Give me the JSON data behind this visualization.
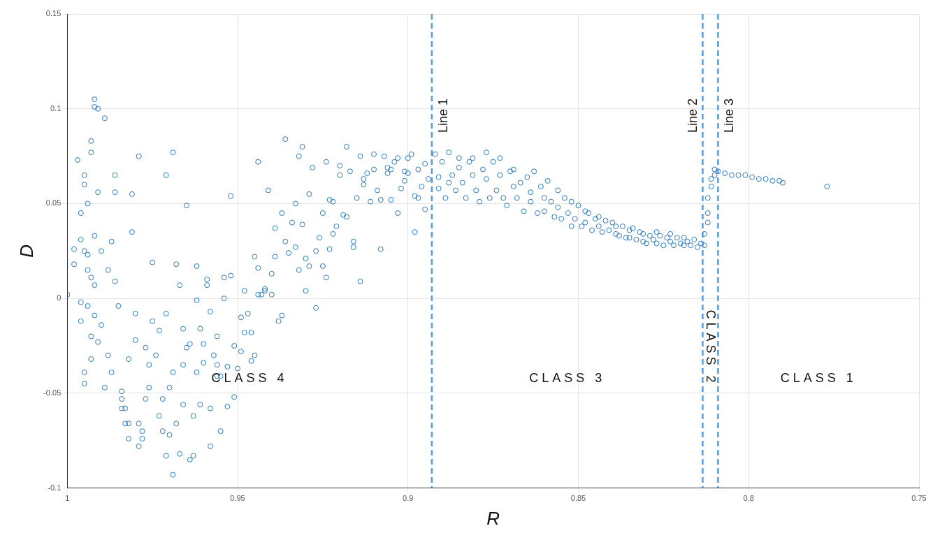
{
  "chart_data": {
    "type": "scatter",
    "xlabel": "R",
    "ylabel": "D",
    "xlim": [
      1,
      0.75
    ],
    "ylim": [
      -0.1,
      0.15
    ],
    "xticks": [
      1,
      0.95,
      0.9,
      0.85,
      0.8,
      0.75
    ],
    "yticks": [
      -0.1,
      -0.05,
      0,
      0.05,
      0.1,
      0.15
    ],
    "grid": true,
    "legend": false,
    "marker": "circle",
    "series": [
      {
        "color": "#2a7abf",
        "x": [
          1.0,
          0.998,
          0.998,
          0.997,
          0.996,
          0.996,
          0.996,
          0.996,
          0.995,
          0.995,
          0.995,
          0.995,
          0.995,
          0.994,
          0.994,
          0.994,
          0.994,
          0.993,
          0.993,
          0.993,
          0.993,
          0.993,
          0.992,
          0.992,
          0.992,
          0.992,
          0.992,
          0.991,
          0.991,
          0.991,
          0.99,
          0.99,
          0.989,
          0.989,
          0.988,
          0.988,
          0.987,
          0.987,
          0.986,
          0.986,
          0.986,
          0.985,
          0.984,
          0.984,
          0.984,
          0.983,
          0.983,
          0.982,
          0.982,
          0.982,
          0.981,
          0.981,
          0.98,
          0.98,
          0.979,
          0.979,
          0.978,
          0.978,
          0.977,
          0.979,
          0.977,
          0.976,
          0.976,
          0.975,
          0.975,
          0.974,
          0.973,
          0.973,
          0.972,
          0.972,
          0.971,
          0.971,
          0.971,
          0.97,
          0.97,
          0.969,
          0.969,
          0.969,
          0.968,
          0.968,
          0.967,
          0.967,
          0.966,
          0.966,
          0.966,
          0.965,
          0.965,
          0.964,
          0.964,
          0.963,
          0.963,
          0.962,
          0.962,
          0.962,
          0.961,
          0.961,
          0.96,
          0.96,
          0.959,
          0.959,
          0.958,
          0.958,
          0.958,
          0.957,
          0.956,
          0.956,
          0.956,
          0.955,
          0.955,
          0.954,
          0.954,
          0.953,
          0.953,
          0.952,
          0.952,
          0.951,
          0.951,
          0.95,
          0.949,
          0.949,
          0.948,
          0.948,
          0.947,
          0.946,
          0.946,
          0.945,
          0.945,
          0.944,
          0.944,
          0.944,
          0.943,
          0.942,
          0.942,
          0.941,
          0.94,
          0.94,
          0.939,
          0.939,
          0.938,
          0.937,
          0.937,
          0.936,
          0.936,
          0.935,
          0.934,
          0.933,
          0.933,
          0.932,
          0.932,
          0.931,
          0.931,
          0.93,
          0.93,
          0.929,
          0.929,
          0.928,
          0.927,
          0.927,
          0.926,
          0.925,
          0.925,
          0.924,
          0.924,
          0.923,
          0.923,
          0.922,
          0.922,
          0.921,
          0.92,
          0.92,
          0.919,
          0.918,
          0.918,
          0.917,
          0.916,
          0.916,
          0.915,
          0.914,
          0.914,
          0.913,
          0.913,
          0.912,
          0.911,
          0.91,
          0.91,
          0.909,
          0.908,
          0.908,
          0.907,
          0.906,
          0.906,
          0.905,
          0.905,
          0.904,
          0.903,
          0.903,
          0.902,
          0.901,
          0.901,
          0.9,
          0.9,
          0.899,
          0.898,
          0.898,
          0.897,
          0.897,
          0.896,
          0.895,
          0.895,
          0.894,
          0.892,
          0.891,
          0.891,
          0.89,
          0.889,
          0.888,
          0.888,
          0.887,
          0.886,
          0.885,
          0.885,
          0.884,
          0.883,
          0.882,
          0.881,
          0.881,
          0.88,
          0.879,
          0.878,
          0.877,
          0.877,
          0.876,
          0.875,
          0.874,
          0.873,
          0.873,
          0.872,
          0.871,
          0.87,
          0.869,
          0.869,
          0.868,
          0.867,
          0.866,
          0.865,
          0.864,
          0.864,
          0.863,
          0.862,
          0.861,
          0.86,
          0.86,
          0.859,
          0.858,
          0.857,
          0.856,
          0.856,
          0.855,
          0.854,
          0.853,
          0.852,
          0.852,
          0.851,
          0.85,
          0.849,
          0.848,
          0.848,
          0.847,
          0.846,
          0.845,
          0.844,
          0.844,
          0.843,
          0.842,
          0.841,
          0.84,
          0.839,
          0.839,
          0.838,
          0.837,
          0.836,
          0.835,
          0.835,
          0.834,
          0.833,
          0.832,
          0.831,
          0.831,
          0.83,
          0.829,
          0.828,
          0.827,
          0.827,
          0.826,
          0.825,
          0.824,
          0.823,
          0.823,
          0.822,
          0.821,
          0.82,
          0.819,
          0.819,
          0.818,
          0.817,
          0.816,
          0.815,
          0.814,
          0.813,
          0.813,
          0.812,
          0.812,
          0.812,
          0.811,
          0.811,
          0.81,
          0.81,
          0.809,
          0.807,
          0.805,
          0.803,
          0.801,
          0.799,
          0.797,
          0.795,
          0.793,
          0.791,
          0.79,
          0.777
        ],
        "values": [
          0.002,
          0.026,
          0.018,
          0.073,
          0.045,
          0.031,
          -0.002,
          -0.012,
          -0.039,
          -0.045,
          0.065,
          0.06,
          0.025,
          -0.004,
          0.05,
          0.015,
          0.023,
          -0.02,
          -0.032,
          0.011,
          0.083,
          0.077,
          0.105,
          0.101,
          0.007,
          0.033,
          -0.009,
          0.1,
          -0.023,
          0.056,
          -0.014,
          0.025,
          0.095,
          -0.047,
          0.015,
          -0.03,
          -0.039,
          0.03,
          0.065,
          0.009,
          0.056,
          -0.004,
          -0.053,
          -0.058,
          -0.049,
          -0.066,
          -0.058,
          -0.074,
          -0.066,
          -0.032,
          0.035,
          0.055,
          -0.008,
          -0.022,
          -0.078,
          -0.066,
          -0.07,
          -0.074,
          -0.053,
          0.075,
          -0.026,
          -0.035,
          -0.047,
          -0.012,
          0.019,
          -0.03,
          -0.062,
          -0.017,
          -0.07,
          -0.053,
          -0.008,
          0.065,
          -0.083,
          -0.072,
          -0.047,
          -0.039,
          -0.093,
          0.077,
          0.018,
          -0.066,
          -0.082,
          0.007,
          -0.016,
          -0.035,
          -0.056,
          -0.026,
          0.049,
          -0.024,
          -0.085,
          -0.083,
          -0.062,
          -0.039,
          -0.001,
          0.017,
          -0.016,
          -0.056,
          -0.034,
          -0.024,
          0.01,
          0.007,
          -0.007,
          -0.078,
          -0.058,
          -0.03,
          -0.035,
          -0.041,
          -0.02,
          -0.041,
          -0.07,
          0.011,
          0.0,
          -0.057,
          -0.036,
          0.054,
          0.012,
          -0.052,
          -0.025,
          -0.037,
          -0.01,
          -0.028,
          -0.018,
          0.004,
          -0.008,
          -0.018,
          -0.033,
          -0.03,
          0.022,
          0.016,
          0.002,
          0.072,
          0.002,
          0.005,
          0.004,
          0.057,
          0.013,
          0.002,
          0.022,
          0.037,
          -0.012,
          -0.009,
          0.045,
          0.084,
          0.03,
          0.024,
          0.04,
          0.05,
          0.027,
          0.015,
          0.075,
          0.039,
          0.08,
          0.004,
          0.021,
          0.055,
          0.017,
          0.069,
          -0.005,
          0.025,
          0.032,
          0.045,
          0.017,
          0.072,
          0.011,
          0.026,
          0.052,
          0.034,
          0.051,
          0.038,
          0.065,
          0.07,
          0.044,
          0.08,
          0.043,
          0.067,
          0.027,
          0.03,
          0.053,
          0.075,
          0.009,
          0.06,
          0.063,
          0.066,
          0.051,
          0.068,
          0.076,
          0.057,
          0.026,
          0.052,
          0.075,
          0.069,
          0.066,
          0.052,
          0.068,
          0.072,
          0.045,
          0.074,
          0.058,
          0.067,
          0.062,
          0.066,
          0.074,
          0.076,
          0.054,
          0.035,
          0.053,
          0.068,
          0.059,
          0.047,
          0.071,
          0.063,
          0.076,
          0.058,
          0.064,
          0.072,
          0.053,
          0.061,
          0.077,
          0.065,
          0.057,
          0.069,
          0.074,
          0.061,
          0.053,
          0.072,
          0.065,
          0.074,
          0.057,
          0.051,
          0.068,
          0.077,
          0.063,
          0.053,
          0.072,
          0.057,
          0.065,
          0.074,
          0.053,
          0.049,
          0.067,
          0.059,
          0.068,
          0.053,
          0.061,
          0.046,
          0.064,
          0.056,
          0.051,
          0.067,
          0.045,
          0.059,
          0.053,
          0.046,
          0.062,
          0.051,
          0.043,
          0.057,
          0.048,
          0.042,
          0.053,
          0.045,
          0.038,
          0.051,
          0.042,
          0.049,
          0.038,
          0.046,
          0.04,
          0.045,
          0.036,
          0.042,
          0.038,
          0.043,
          0.035,
          0.041,
          0.036,
          0.04,
          0.034,
          0.038,
          0.033,
          0.038,
          0.032,
          0.036,
          0.032,
          0.037,
          0.031,
          0.035,
          0.03,
          0.034,
          0.029,
          0.033,
          0.031,
          0.035,
          0.029,
          0.033,
          0.028,
          0.032,
          0.03,
          0.034,
          0.028,
          0.032,
          0.029,
          0.032,
          0.028,
          0.03,
          0.028,
          0.031,
          0.027,
          0.029,
          0.028,
          0.034,
          0.04,
          0.045,
          0.053,
          0.059,
          0.063,
          0.065,
          0.068,
          0.067,
          0.066,
          0.065,
          0.065,
          0.065,
          0.064,
          0.063,
          0.063,
          0.062,
          0.062,
          0.061,
          0.059
        ]
      }
    ],
    "ref_lines": [
      {
        "axis": "x",
        "value": 0.893,
        "label": "Line 1",
        "color": "#5b9bd5",
        "line_style": "dashed"
      },
      {
        "axis": "x",
        "value": 0.8135,
        "label": "Line 2",
        "color": "#5b9bd5",
        "line_style": "dashed"
      },
      {
        "axis": "x",
        "value": 0.809,
        "label": "Line 3",
        "color": "#5b9bd5",
        "line_style": "dashed"
      }
    ],
    "annotations": [
      "CLASS 4",
      "CLASS 3",
      "CLASS 2",
      "CLASS 1"
    ]
  }
}
